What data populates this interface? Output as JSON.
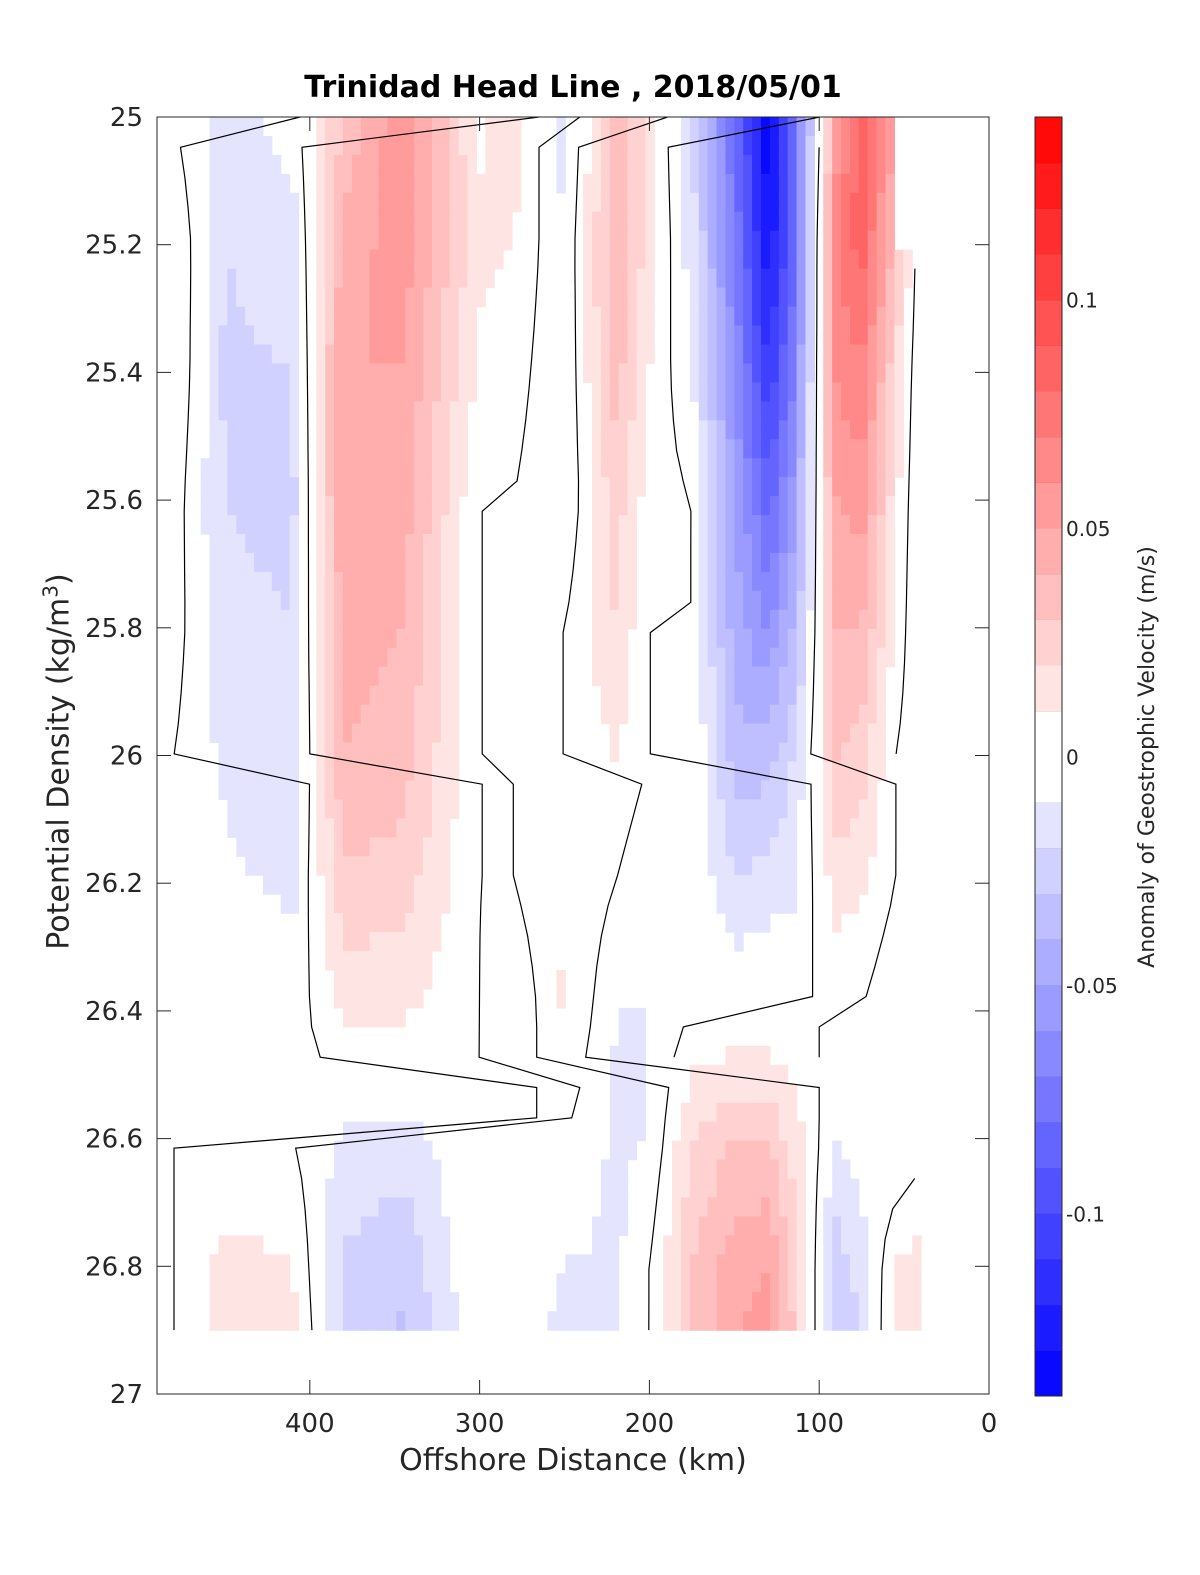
{
  "chart_data": {
    "type": "heatmap",
    "title": "Trinidad Head Line , 2018/05/01",
    "xlabel": "Offshore Distance (km)",
    "ylabel": "Potential Density (kg/m",
    "ylabel_superscript": "3",
    "ylabel_suffix": ")",
    "colorbar_label": "Anomaly of Geostrophic Velocity (m/s)",
    "xlim": [
      490,
      0
    ],
    "ylim": [
      25,
      27
    ],
    "y_reversed": true,
    "x_reversed": true,
    "xticks": [
      400,
      300,
      200,
      100,
      0
    ],
    "xtick_labels": [
      "400",
      "300",
      "200",
      "100",
      "0"
    ],
    "yticks": [
      25,
      25.2,
      25.4,
      25.6,
      25.8,
      26,
      26.2,
      26.4,
      26.6,
      26.8,
      27
    ],
    "ytick_labels": [
      "25",
      "25.2",
      "25.4",
      "25.6",
      "25.8",
      "26",
      "26.2",
      "26.4",
      "26.6",
      "26.8",
      "27"
    ],
    "colorbar": {
      "range": [
        -0.14,
        0.14
      ],
      "ticks": [
        0.1,
        0.05,
        0,
        -0.05,
        -0.1
      ],
      "tick_labels": [
        "0.1",
        "0.05",
        "0",
        "-0.05",
        "-0.1"
      ],
      "levels": 28,
      "colormap": "blue-white-red",
      "neg_color": "#0000ff",
      "pos_color": "#ff0000"
    },
    "x_centers": [
      480,
      450,
      410,
      380,
      345,
      300,
      280,
      250,
      220,
      200,
      175,
      150,
      130,
      115,
      90,
      75,
      55,
      40
    ],
    "y_levels": [
      25.0,
      25.2,
      25.4,
      25.6,
      25.8,
      26.0,
      26.2,
      26.4,
      26.6,
      26.8,
      26.9
    ],
    "series": [
      {
        "name": "x=480",
        "x": 480,
        "values": [
          0,
          0.01,
          0.01,
          0.005,
          0.005,
          0,
          0,
          0,
          0,
          0,
          0
        ]
      },
      {
        "name": "x=450",
        "x": 450,
        "values": [
          -0.015,
          -0.02,
          -0.022,
          -0.02,
          -0.018,
          -0.012,
          -0.008,
          0,
          0,
          0.015,
          0.015
        ]
      },
      {
        "name": "x=410",
        "x": 410,
        "values": [
          -0.005,
          -0.015,
          -0.02,
          -0.022,
          -0.02,
          -0.02,
          -0.012,
          -0.006,
          0,
          0.01,
          0.012
        ]
      },
      {
        "name": "x=380",
        "x": 380,
        "values": [
          0.03,
          0.045,
          0.05,
          0.05,
          0.045,
          0.04,
          0.028,
          0.012,
          -0.012,
          -0.022,
          -0.02
        ]
      },
      {
        "name": "x=345",
        "x": 345,
        "values": [
          0.06,
          0.055,
          0.05,
          0.045,
          0.04,
          0.035,
          0.025,
          0.012,
          -0.015,
          -0.028,
          -0.032
        ]
      },
      {
        "name": "x=300",
        "x": 300,
        "values": [
          0.008,
          0.012,
          0.008,
          0,
          0,
          0,
          0,
          0,
          0,
          0,
          0
        ]
      },
      {
        "name": "x=280",
        "x": 280,
        "values": [
          0.015,
          0.01,
          0.005,
          0,
          0,
          0,
          0,
          -0.01,
          0,
          0,
          0
        ]
      },
      {
        "name": "x=250",
        "x": 250,
        "values": [
          -0.015,
          -0.01,
          -0.01,
          -0.01,
          0,
          0,
          0.01,
          0.012,
          0,
          -0.01,
          -0.015
        ]
      },
      {
        "name": "x=220",
        "x": 220,
        "values": [
          0.035,
          0.04,
          0.035,
          0.025,
          0.02,
          0.01,
          0,
          -0.01,
          -0.012,
          -0.012,
          -0.01
        ]
      },
      {
        "name": "x=200",
        "x": 200,
        "values": [
          0.015,
          0.015,
          0.01,
          0.005,
          0,
          0,
          -0.01,
          -0.01,
          -0.01,
          0,
          0
        ]
      },
      {
        "name": "x=175",
        "x": 175,
        "values": [
          -0.02,
          -0.015,
          -0.01,
          0,
          0,
          0,
          0,
          0,
          0.02,
          0.03,
          0.03
        ]
      },
      {
        "name": "x=150",
        "x": 150,
        "values": [
          -0.08,
          -0.07,
          -0.06,
          -0.05,
          -0.045,
          -0.035,
          -0.02,
          0,
          0.03,
          0.045,
          0.05
        ]
      },
      {
        "name": "x=130",
        "x": 130,
        "values": [
          -0.14,
          -0.13,
          -0.11,
          -0.085,
          -0.06,
          -0.035,
          -0.015,
          0,
          0.03,
          0.05,
          0.055
        ]
      },
      {
        "name": "x=115",
        "x": 115,
        "values": [
          -0.08,
          -0.085,
          -0.07,
          -0.055,
          -0.04,
          -0.02,
          -0.012,
          0,
          0.015,
          0.025,
          0.03
        ]
      },
      {
        "name": "x=90",
        "x": 90,
        "values": [
          0.05,
          0.07,
          0.06,
          0.05,
          0.04,
          0.03,
          0.015,
          0,
          -0.01,
          -0.025,
          -0.03
        ]
      },
      {
        "name": "x=75",
        "x": 75,
        "values": [
          0.09,
          0.085,
          0.07,
          0.055,
          0.04,
          0.025,
          0.012,
          0,
          -0.005,
          -0.015,
          -0.02
        ]
      },
      {
        "name": "x=55",
        "x": 55,
        "values": [
          0.05,
          0.035,
          0.02,
          0.012,
          0.008,
          0,
          0,
          -0.01,
          -0.01,
          0.01,
          0.015
        ]
      },
      {
        "name": "x=40",
        "x": 40,
        "values": [
          null,
          -0.01,
          -0.012,
          -0.012,
          -0.012,
          -0.008,
          -0.005,
          0,
          -0.005,
          0.015,
          0.02
        ]
      }
    ]
  }
}
